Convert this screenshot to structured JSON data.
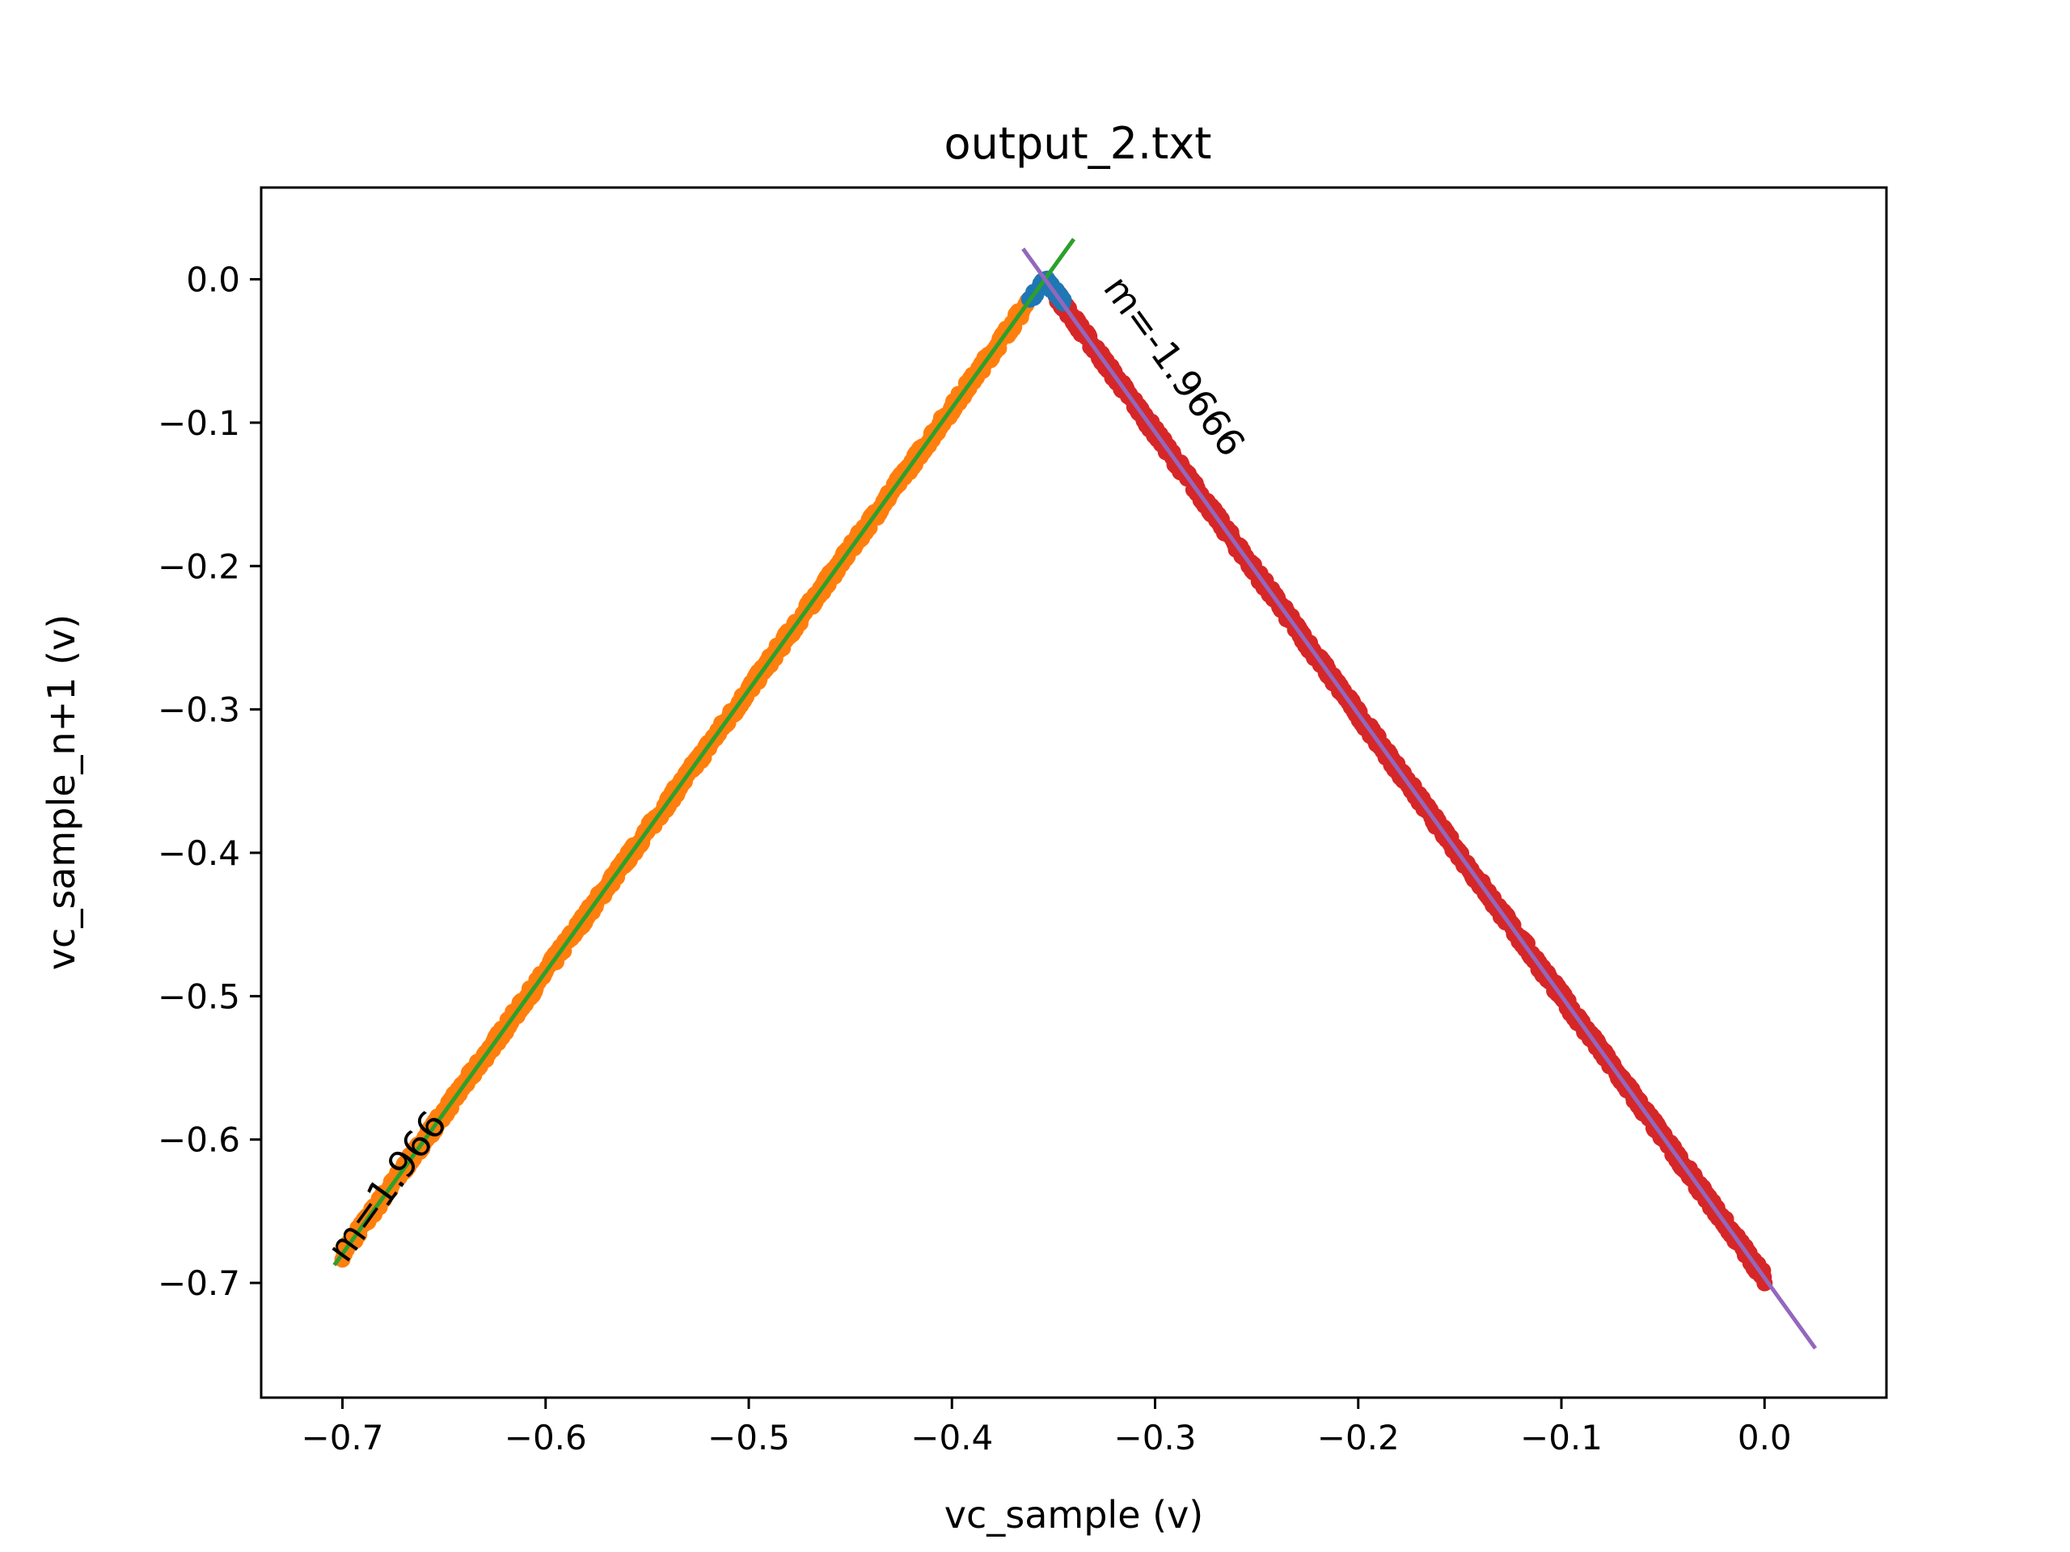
{
  "chart_data": {
    "type": "scatter",
    "title": "output_2.txt",
    "xlabel": "vc_sample (v)",
    "ylabel": "vc_sample_n+1 (v)",
    "xlim": [
      -0.74,
      0.06
    ],
    "ylim": [
      -0.78,
      0.064
    ],
    "x_ticks": [
      {
        "value": -0.7,
        "label": "−0.7"
      },
      {
        "value": -0.6,
        "label": "−0.6"
      },
      {
        "value": -0.5,
        "label": "−0.5"
      },
      {
        "value": -0.4,
        "label": "−0.4"
      },
      {
        "value": -0.3,
        "label": "−0.3"
      },
      {
        "value": -0.2,
        "label": "−0.2"
      },
      {
        "value": -0.1,
        "label": "−0.1"
      },
      {
        "value": 0.0,
        "label": "0.0"
      }
    ],
    "y_ticks": [
      {
        "value": 0.0,
        "label": "0.0"
      },
      {
        "value": -0.1,
        "label": "−0.1"
      },
      {
        "value": -0.2,
        "label": "−0.2"
      },
      {
        "value": -0.3,
        "label": "−0.3"
      },
      {
        "value": -0.4,
        "label": "−0.4"
      },
      {
        "value": -0.5,
        "label": "−0.5"
      },
      {
        "value": -0.6,
        "label": "−0.6"
      },
      {
        "value": -0.7,
        "label": "−0.7"
      }
    ],
    "grid": false,
    "legend": "none",
    "scatter_series": [
      {
        "color": "#ff7f0e",
        "x_range": [
          -0.7,
          -0.363
        ],
        "slope": 1.966,
        "intercept": 0.6965
      },
      {
        "color": "#d62728",
        "x_range": [
          -0.349,
          0.0
        ],
        "slope": -1.9666,
        "intercept": -0.6965
      },
      {
        "color": "#1f77b4",
        "x_range": [
          -0.362,
          -0.345
        ],
        "peak": [
          -0.354,
          0.0
        ]
      }
    ],
    "fit_lines": [
      {
        "color": "#2ca02c",
        "slope": 1.966,
        "intercept": 0.6965,
        "x_range": [
          -0.704,
          -0.34
        ],
        "label": "m=1.966"
      },
      {
        "color": "#9467bd",
        "slope": -1.9666,
        "intercept": -0.6965,
        "x_range": [
          -0.365,
          0.025
        ],
        "label": "m=-1.9666"
      }
    ],
    "annotations": [
      {
        "text": "m=1.966",
        "at": [
          -0.698,
          -0.687
        ]
      },
      {
        "text": "m=-1.9666",
        "at": [
          -0.326,
          -0.006
        ]
      }
    ]
  }
}
